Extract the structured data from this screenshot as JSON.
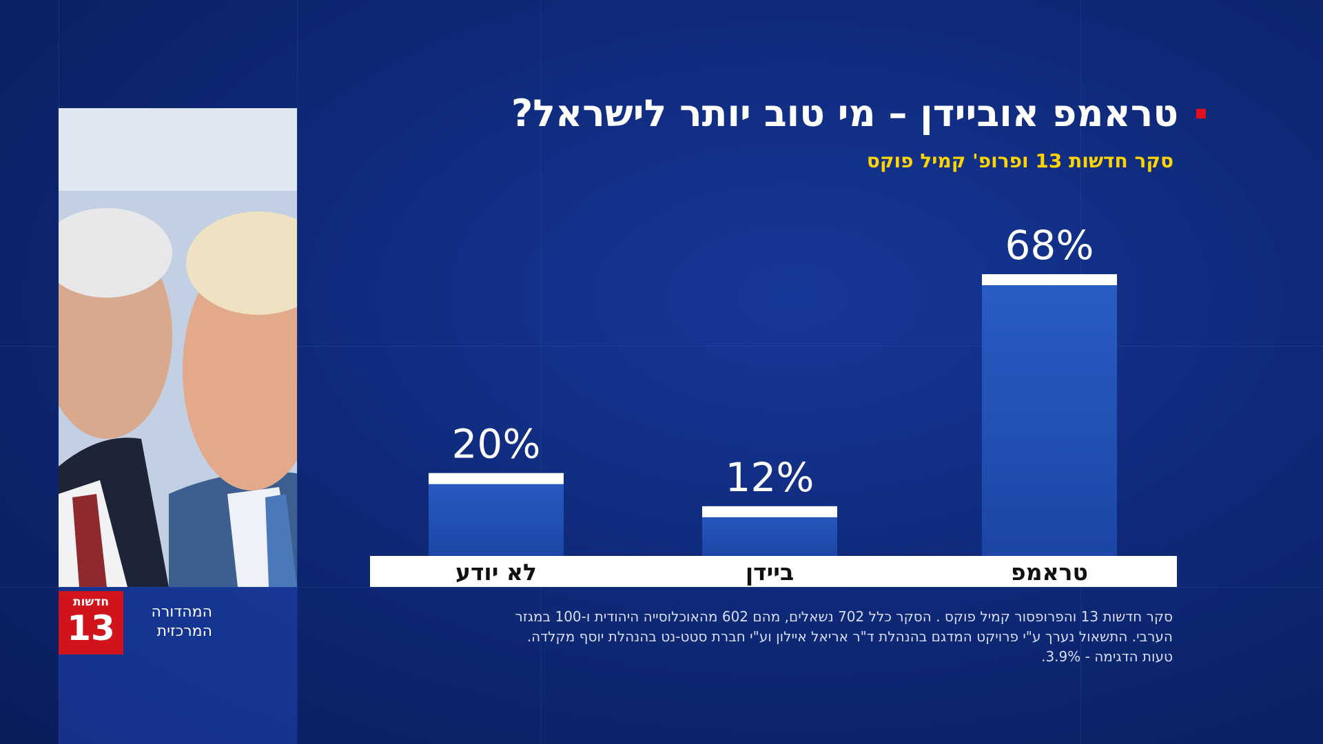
{
  "header": {
    "title": "טראמפ אוביידן – מי טוב יותר לישראל?",
    "subtitle": "סקר חדשות 13 ופרופ' קמיל פוקס"
  },
  "chart_data": {
    "type": "bar",
    "categories": [
      "טראמפ",
      "ביידן",
      "לא יודע"
    ],
    "values": [
      68,
      12,
      20
    ],
    "value_labels": [
      "68%",
      "12%",
      "20%"
    ],
    "ylim": [
      0,
      100
    ],
    "title": "טראמפ או ביידן – מי טוב יותר לישראל?",
    "xlabel": "",
    "ylabel": "",
    "grid": false,
    "direction": "rtl"
  },
  "branding": {
    "logo_top": "חדשות",
    "logo_number": "13",
    "program_line1": "המהדורה",
    "program_line2": "המרכזית"
  },
  "footnote": {
    "line1": "סקר חדשות 13 והפרופסור קמיל פוקס . הסקר כלל 702 נשאלים, מהם 602 מהאוכלוסייה היהודית ו-100 במגזר",
    "line2": "הערבי. התשאול נערך ע\"י פרויקט המדגם בהנהלת ד\"ר אריאל איילון וע\"י חברת סטט-נט בהנהלת יוסף מקלדה.",
    "line3": "טעות הדגימה - 3.9%."
  },
  "colors": {
    "background": "#0f2a7a",
    "bar": "#2a5dc4",
    "bar_cap": "#ffffff",
    "label_strip": "#ffffff",
    "title": "#ffffff",
    "subtitle": "#ffd400",
    "bullet": "#e0101e",
    "logo": "#d1141c"
  }
}
